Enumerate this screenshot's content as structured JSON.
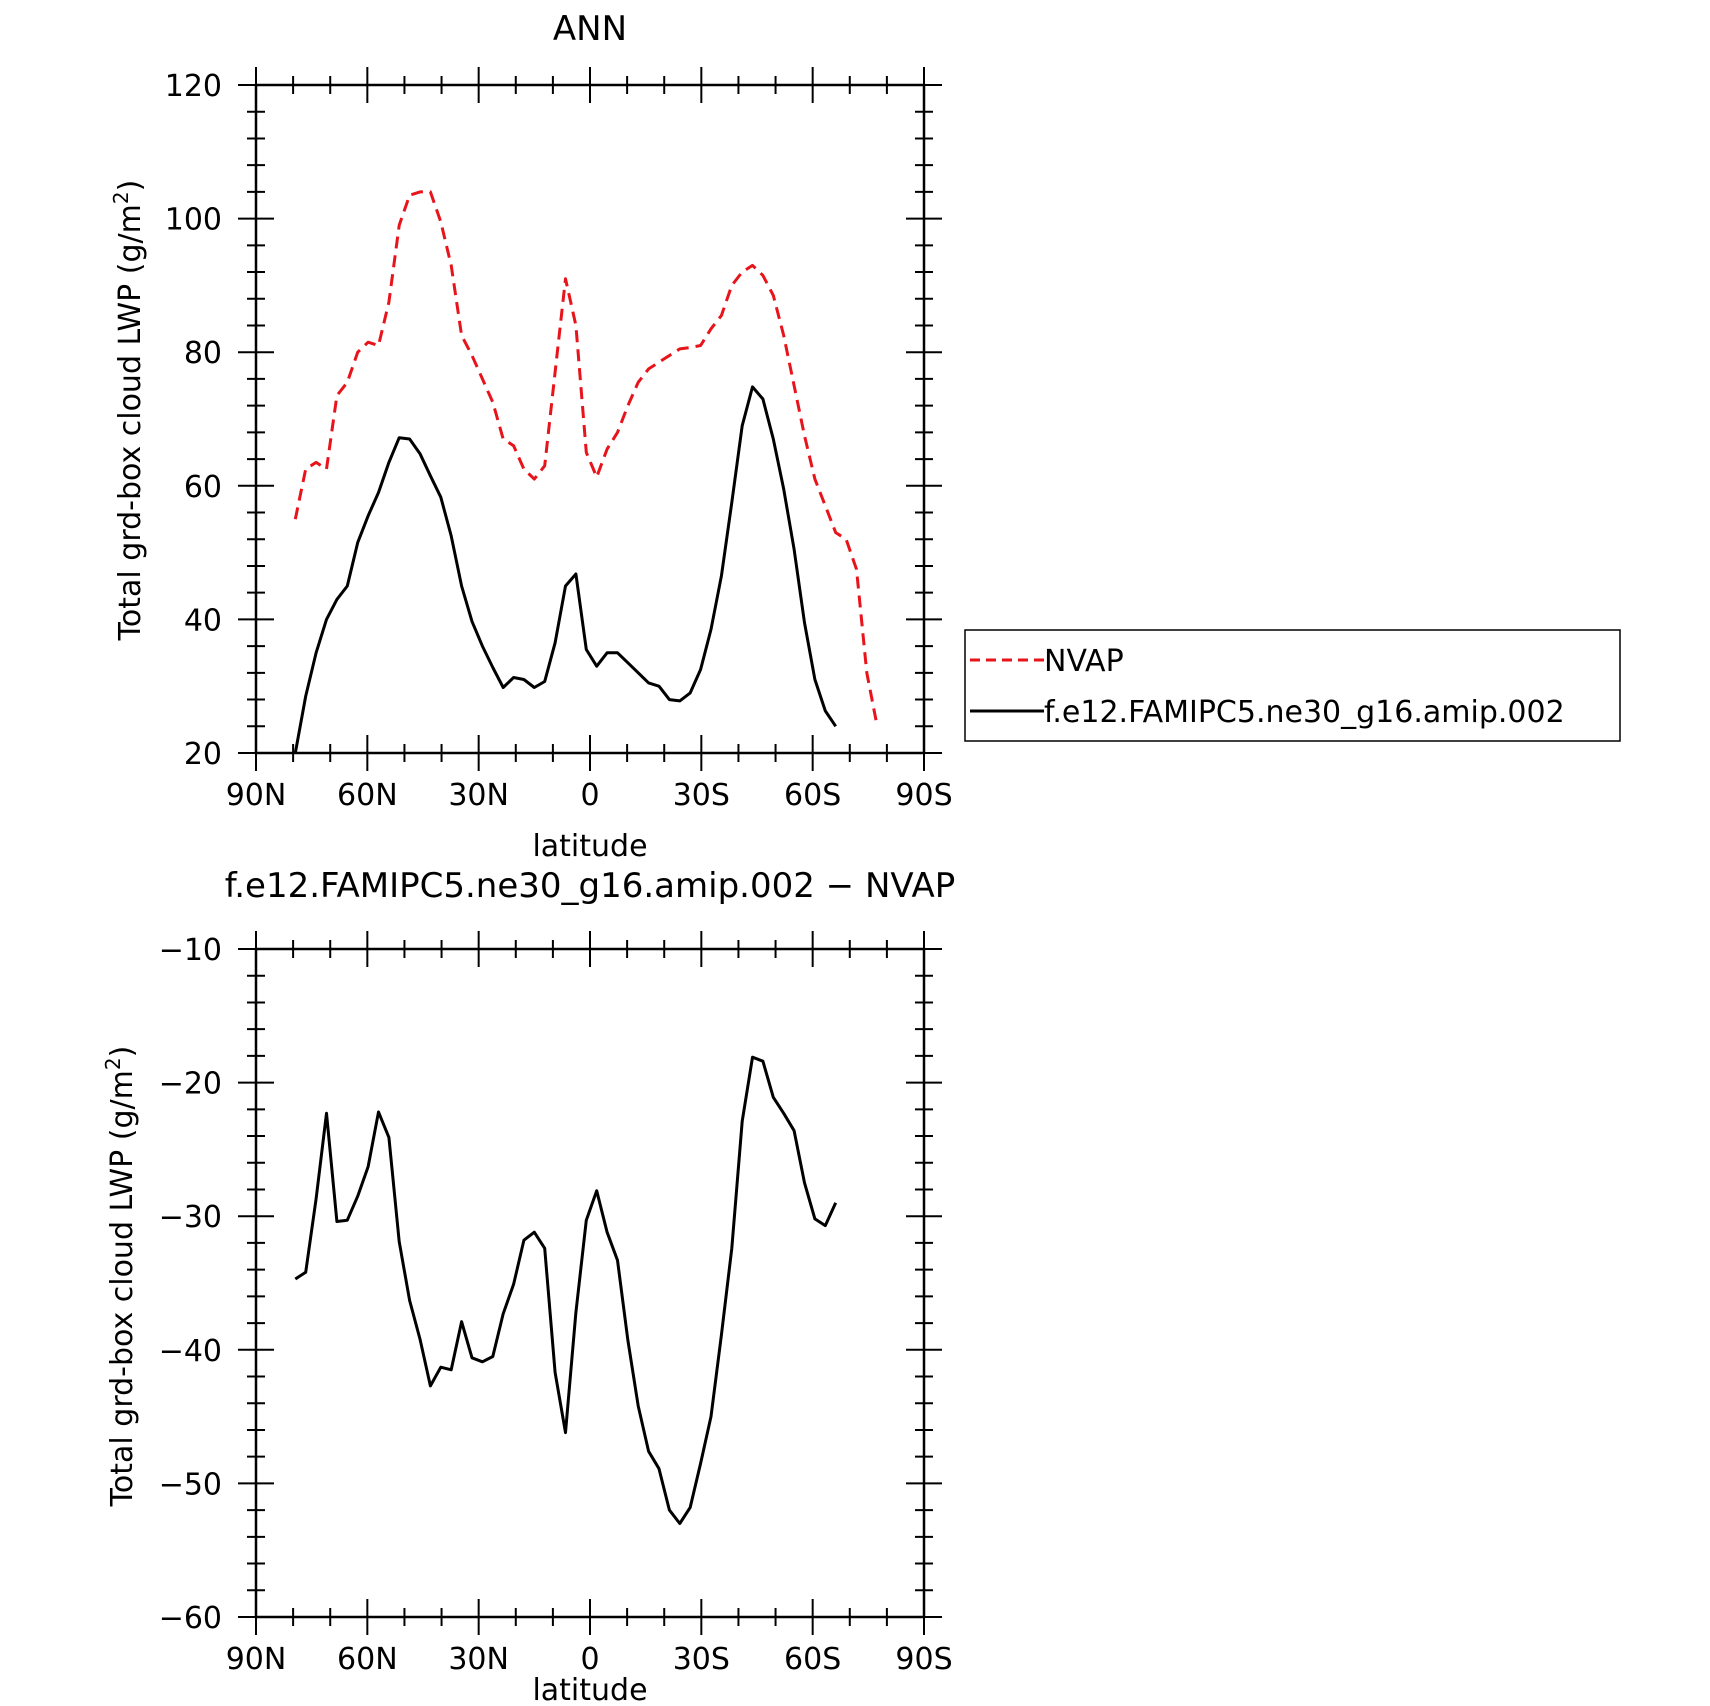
{
  "chart_data": [
    {
      "type": "line",
      "title": "ANN",
      "xlabel": "latitude",
      "ylabel": "Total grd-box cloud LWP",
      "ylabel_unit_base": "(g/m",
      "ylabel_unit_sup": "2",
      "ylabel_unit_end": ")",
      "xlim": [
        90,
        -90
      ],
      "ylim": [
        20,
        120
      ],
      "xticks": [
        90,
        60,
        30,
        0,
        -30,
        -60,
        -90
      ],
      "xtick_labels": [
        "90N",
        "60N",
        "30N",
        "0",
        "30S",
        "60S",
        "90S"
      ],
      "yticks": [
        20,
        40,
        60,
        80,
        100,
        120
      ],
      "ytick_labels": [
        "20",
        "40",
        "60",
        "80",
        "100",
        "120"
      ],
      "grid": false,
      "legend_position": "right",
      "series": [
        {
          "name": "NVAP",
          "color": "#e8141b",
          "dash": "dashed",
          "x": [
            79.4,
            76.6,
            73.8,
            71.0,
            68.2,
            65.4,
            62.6,
            59.8,
            57.0,
            54.2,
            51.4,
            48.6,
            45.8,
            43.0,
            40.2,
            37.4,
            34.6,
            31.8,
            29.0,
            26.2,
            23.4,
            20.6,
            17.8,
            15.0,
            12.2,
            9.4,
            6.6,
            3.8,
            1.0,
            -1.8,
            -4.6,
            -7.4,
            -10.2,
            -13.0,
            -15.8,
            -18.6,
            -21.4,
            -24.2,
            -27.0,
            -29.8,
            -32.6,
            -35.4,
            -38.2,
            -41.0,
            -43.8,
            -46.6,
            -49.4,
            -52.2,
            -55.0,
            -57.8,
            -60.6,
            -63.4,
            -66.2,
            -69.0,
            -71.8,
            -74.6,
            -77.4
          ],
          "values": [
            55,
            62.5,
            63.5,
            62.5,
            73.5,
            75.5,
            80,
            81.5,
            81,
            87.5,
            99,
            103.5,
            104,
            104,
            99.5,
            93,
            82.5,
            79.5,
            76,
            72.5,
            67,
            66,
            62.5,
            61,
            63,
            77,
            91,
            84,
            65,
            61.3,
            65.5,
            68,
            72,
            75.5,
            77.5,
            78.5,
            79.5,
            80.5,
            80.7,
            81,
            83.5,
            85.5,
            90,
            92,
            93,
            91.5,
            88.5,
            82.5,
            75,
            67.5,
            61,
            57,
            53,
            52,
            47.5,
            32,
            24
          ]
        },
        {
          "name": "f.e12.FAMIPC5.ne30_g16.amip.002",
          "color": "#000000",
          "dash": "solid",
          "x": [
            79.4,
            76.6,
            73.8,
            71.0,
            68.2,
            65.4,
            62.6,
            59.8,
            57.0,
            54.2,
            51.4,
            48.6,
            45.8,
            43.0,
            40.2,
            37.4,
            34.6,
            31.8,
            29.0,
            26.2,
            23.4,
            20.6,
            17.8,
            15.0,
            12.2,
            9.4,
            6.6,
            3.8,
            1.0,
            -1.8,
            -4.6,
            -7.4,
            -10.2,
            -13.0,
            -15.8,
            -18.6,
            -21.4,
            -24.2,
            -27.0,
            -29.8,
            -32.6,
            -35.4,
            -38.2,
            -41.0,
            -43.8,
            -46.6,
            -49.4,
            -52.2,
            -55.0,
            -57.8,
            -60.6,
            -63.4,
            -66.2
          ],
          "values": [
            20,
            28.5,
            35,
            40,
            43,
            45,
            51.5,
            55.5,
            59,
            63.5,
            67.2,
            67,
            64.8,
            61.5,
            58.3,
            52.5,
            45,
            39.7,
            36,
            32.8,
            29.8,
            31.3,
            31,
            29.8,
            30.7,
            36.5,
            45,
            46.8,
            35.5,
            33,
            35,
            35,
            33.5,
            32,
            30.5,
            30,
            28,
            27.8,
            29,
            32.5,
            38.5,
            46.5,
            57.5,
            69,
            74.8,
            73,
            67,
            59.5,
            50.5,
            39.5,
            31,
            26.3,
            24
          ]
        }
      ]
    },
    {
      "type": "line",
      "title": "f.e12.FAMIPC5.ne30_g16.amip.002 − NVAP",
      "xlabel": "latitude",
      "ylabel": "Total grd-box cloud LWP",
      "ylabel_unit_base": "(g/m",
      "ylabel_unit_sup": "2",
      "ylabel_unit_end": ")",
      "xlim": [
        90,
        -90
      ],
      "ylim": [
        -60,
        -10
      ],
      "xticks": [
        90,
        60,
        30,
        0,
        -30,
        -60,
        -90
      ],
      "xtick_labels": [
        "90N",
        "60N",
        "30N",
        "0",
        "30S",
        "60S",
        "90S"
      ],
      "yticks": [
        -60,
        -50,
        -40,
        -30,
        -20,
        -10
      ],
      "ytick_labels": [
        "−60",
        "−50",
        "−40",
        "−30",
        "−20",
        "−10"
      ],
      "grid": false,
      "series": [
        {
          "color": "#000000",
          "dash": "solid",
          "x": [
            79.4,
            76.6,
            73.8,
            71.0,
            68.2,
            65.4,
            62.6,
            59.8,
            57.0,
            54.2,
            51.4,
            48.6,
            45.8,
            43.0,
            40.2,
            37.4,
            34.6,
            31.8,
            29.0,
            26.2,
            23.4,
            20.6,
            17.8,
            15.0,
            12.2,
            9.4,
            6.6,
            3.8,
            1.0,
            -1.8,
            -4.6,
            -7.4,
            -10.2,
            -13.0,
            -15.8,
            -18.6,
            -21.4,
            -24.2,
            -27.0,
            -29.8,
            -32.6,
            -35.4,
            -38.2,
            -41.0,
            -43.8,
            -46.6,
            -49.4,
            -52.2,
            -55.0,
            -57.8,
            -60.6,
            -63.4,
            -66.2
          ],
          "values": [
            -34.7,
            -34.2,
            -28.7,
            -22.3,
            -30.4,
            -30.3,
            -28.5,
            -26.3,
            -22.2,
            -24.1,
            -31.9,
            -36.3,
            -39.2,
            -42.7,
            -41.3,
            -41.5,
            -37.9,
            -40.6,
            -40.9,
            -40.5,
            -37.3,
            -35.1,
            -31.8,
            -31.2,
            -32.4,
            -41.7,
            -46.2,
            -37.2,
            -30.3,
            -28.1,
            -31.2,
            -33.3,
            -39.3,
            -44.2,
            -47.6,
            -48.9,
            -52.0,
            -53.0,
            -51.8,
            -48.5,
            -45.0,
            -38.9,
            -32.4,
            -22.9,
            -18.1,
            -18.4,
            -21.1,
            -22.3,
            -23.6,
            -27.5,
            -30.2,
            -30.7,
            -29.0
          ]
        }
      ]
    }
  ]
}
